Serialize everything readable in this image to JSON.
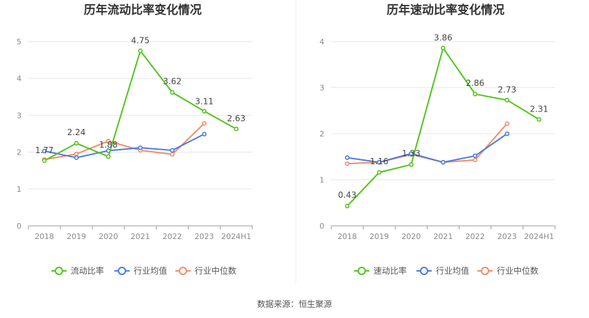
{
  "source_text": "数据来源：恒生聚源",
  "colors": {
    "main": "#52c41a",
    "industry_avg": "#4a7be0",
    "industry_median": "#f08c6a",
    "grid": "#e6e6ee",
    "axis": "#999999"
  },
  "chart_data": [
    {
      "type": "line",
      "title": "历年流动比率变化情况",
      "categories": [
        "2018",
        "2019",
        "2020",
        "2021",
        "2022",
        "2023",
        "2024H1"
      ],
      "ylim": [
        0,
        5
      ],
      "yticks": [
        0,
        1,
        2,
        3,
        4,
        5
      ],
      "xlabel": "",
      "ylabel": "",
      "legend_position": "bottom-center",
      "series": [
        {
          "name": "流动比率",
          "values": [
            1.77,
            2.24,
            1.88,
            4.75,
            3.62,
            3.11,
            2.63
          ],
          "labels": [
            "1.77",
            "2.24",
            "1.88",
            "4.75",
            "3.62",
            "3.11",
            "2.63"
          ]
        },
        {
          "name": "行业均值",
          "values": [
            2.03,
            1.85,
            2.04,
            2.12,
            2.05,
            2.49,
            null
          ]
        },
        {
          "name": "行业中位数",
          "values": [
            1.8,
            1.95,
            2.3,
            2.05,
            1.94,
            2.78,
            null
          ]
        }
      ]
    },
    {
      "type": "line",
      "title": "历年速动比率变化情况",
      "categories": [
        "2018",
        "2019",
        "2020",
        "2021",
        "2022",
        "2023",
        "2024H1"
      ],
      "ylim": [
        0,
        4
      ],
      "yticks": [
        0,
        1,
        2,
        3,
        4
      ],
      "xlabel": "",
      "ylabel": "",
      "legend_position": "bottom-center",
      "series": [
        {
          "name": "速动比率",
          "values": [
            0.43,
            1.16,
            1.33,
            3.86,
            2.86,
            2.73,
            2.31
          ],
          "labels": [
            "0.43",
            "1.16",
            "1.33",
            "3.86",
            "2.86",
            "2.73",
            "2.31"
          ]
        },
        {
          "name": "行业均值",
          "values": [
            1.48,
            1.38,
            1.57,
            1.38,
            1.52,
            2.0,
            null
          ]
        },
        {
          "name": "行业中位数",
          "values": [
            1.35,
            1.38,
            1.55,
            1.38,
            1.43,
            2.22,
            null
          ]
        }
      ]
    }
  ]
}
